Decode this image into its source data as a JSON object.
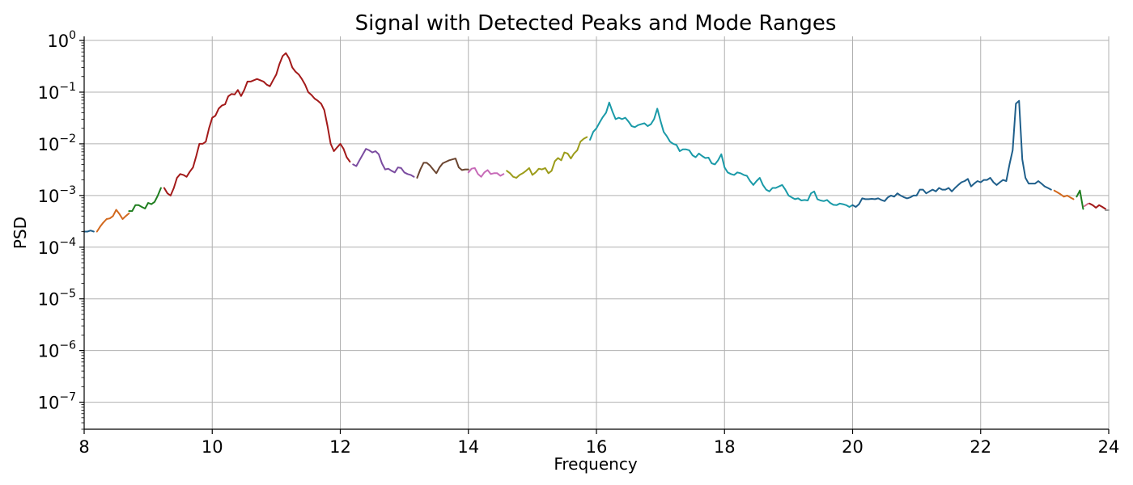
{
  "chart_data": {
    "type": "line",
    "title": "Signal with Detected Peaks and Mode Ranges",
    "xlabel": "Frequency",
    "ylabel": "PSD",
    "xlim": [
      8,
      24
    ],
    "ylim": [
      3e-08,
      1.2
    ],
    "yscale": "log",
    "grid": true,
    "x_ticks": [
      8,
      10,
      12,
      14,
      16,
      18,
      20,
      22,
      24
    ],
    "x_tick_labels": [
      "8",
      "10",
      "12",
      "14",
      "16",
      "18",
      "20",
      "22",
      "24"
    ],
    "y_ticks": [
      {
        "value": 1e-07,
        "base": "10",
        "exp": "−7"
      },
      {
        "value": 1e-06,
        "base": "10",
        "exp": "−6"
      },
      {
        "value": 1e-05,
        "base": "10",
        "exp": "−5"
      },
      {
        "value": 0.0001,
        "base": "10",
        "exp": "−4"
      },
      {
        "value": 0.001,
        "base": "10",
        "exp": "−3"
      },
      {
        "value": 0.01,
        "base": "10",
        "exp": "−2"
      },
      {
        "value": 0.1,
        "base": "10",
        "exp": "−1"
      },
      {
        "value": 1,
        "base": "10",
        "exp": "0"
      }
    ],
    "series": [
      {
        "color": "#1f5f8b",
        "x": [
          8.0,
          8.05,
          8.1,
          8.15
        ],
        "y": [
          0.0002,
          0.0002,
          0.00021,
          0.0002
        ]
      },
      {
        "color": "#d2691e",
        "x": [
          8.2,
          8.25,
          8.3,
          8.35,
          8.4,
          8.45,
          8.5,
          8.55,
          8.6,
          8.65,
          8.7
        ],
        "y": [
          0.0002,
          0.00025,
          0.0003,
          0.00035,
          0.00036,
          0.0004,
          0.00053,
          0.00044,
          0.00035,
          0.0004,
          0.00045
        ]
      },
      {
        "color": "#1e7d1e",
        "x": [
          8.7,
          8.75,
          8.8,
          8.85,
          8.9,
          8.95,
          9.0,
          9.05,
          9.1,
          9.15,
          9.2
        ],
        "y": [
          0.0005,
          0.0005,
          0.00065,
          0.00065,
          0.0006,
          0.00056,
          0.00072,
          0.00068,
          0.00075,
          0.001,
          0.0014
        ]
      },
      {
        "color": "#a31a1a",
        "x": [
          9.25,
          9.3,
          9.35,
          9.4,
          9.45,
          9.5,
          9.55,
          9.6,
          9.65,
          9.7,
          9.75,
          9.8,
          9.85,
          9.9,
          9.95,
          10.0,
          10.05,
          10.1,
          10.15,
          10.2,
          10.25,
          10.3,
          10.35,
          10.4,
          10.45,
          10.5,
          10.55,
          10.6,
          10.65,
          10.7,
          10.75,
          10.8,
          10.85,
          10.9,
          10.95,
          11.0,
          11.05,
          11.1,
          11.15,
          11.2,
          11.25,
          11.3,
          11.35,
          11.4,
          11.45,
          11.5,
          11.55,
          11.6,
          11.65,
          11.7,
          11.75,
          11.8,
          11.85,
          11.9,
          11.95,
          12.0,
          12.05,
          12.1,
          12.15
        ],
        "y": [
          0.0014,
          0.0011,
          0.001,
          0.0014,
          0.0022,
          0.0026,
          0.0025,
          0.0023,
          0.0029,
          0.0035,
          0.0058,
          0.01,
          0.01,
          0.011,
          0.02,
          0.032,
          0.035,
          0.048,
          0.055,
          0.058,
          0.083,
          0.092,
          0.09,
          0.11,
          0.084,
          0.11,
          0.16,
          0.16,
          0.17,
          0.18,
          0.17,
          0.16,
          0.14,
          0.13,
          0.17,
          0.22,
          0.35,
          0.5,
          0.57,
          0.45,
          0.3,
          0.25,
          0.22,
          0.18,
          0.14,
          0.1,
          0.088,
          0.075,
          0.068,
          0.06,
          0.045,
          0.022,
          0.01,
          0.0072,
          0.0085,
          0.01,
          0.008,
          0.0055,
          0.0045
        ]
      },
      {
        "color": "#7b4ca0",
        "x": [
          12.2,
          12.25,
          12.3,
          12.35,
          12.4,
          12.45,
          12.5,
          12.55,
          12.6,
          12.65,
          12.7,
          12.75,
          12.8,
          12.85,
          12.9,
          12.95,
          13.0,
          13.05,
          13.1,
          13.15
        ],
        "y": [
          0.004,
          0.0037,
          0.0048,
          0.0062,
          0.008,
          0.0075,
          0.0068,
          0.0072,
          0.0063,
          0.0042,
          0.0032,
          0.0033,
          0.003,
          0.0028,
          0.0035,
          0.0034,
          0.0028,
          0.0026,
          0.0025,
          0.0023
        ]
      },
      {
        "color": "#6b4530",
        "x": [
          13.2,
          13.25,
          13.3,
          13.35,
          13.4,
          13.45,
          13.5,
          13.55,
          13.6,
          13.65,
          13.7,
          13.75,
          13.8,
          13.85,
          13.9,
          13.95,
          14.0
        ],
        "y": [
          0.0022,
          0.0032,
          0.0043,
          0.0043,
          0.0038,
          0.0032,
          0.0027,
          0.0035,
          0.0042,
          0.0045,
          0.0048,
          0.005,
          0.0052,
          0.0035,
          0.0031,
          0.0032,
          0.0032
        ]
      },
      {
        "color": "#c76bb8",
        "x": [
          14.0,
          14.05,
          14.1,
          14.15,
          14.2,
          14.25,
          14.3,
          14.35,
          14.4,
          14.45,
          14.5,
          14.55
        ],
        "y": [
          0.0028,
          0.0033,
          0.0034,
          0.0026,
          0.0023,
          0.0028,
          0.0031,
          0.0026,
          0.0027,
          0.0027,
          0.0024,
          0.0026
        ]
      },
      {
        "color": "#9c9c1a",
        "x": [
          14.6,
          14.65,
          14.7,
          14.75,
          14.8,
          14.85,
          14.9,
          14.95,
          15.0,
          15.05,
          15.1,
          15.15,
          15.2,
          15.25,
          15.3,
          15.35,
          15.4,
          15.45,
          15.5,
          15.55,
          15.6,
          15.65,
          15.7,
          15.75,
          15.8,
          15.85
        ],
        "y": [
          0.003,
          0.0027,
          0.0023,
          0.0022,
          0.0025,
          0.0027,
          0.003,
          0.0034,
          0.0025,
          0.0028,
          0.0033,
          0.0032,
          0.0034,
          0.0027,
          0.003,
          0.0046,
          0.0053,
          0.0048,
          0.0068,
          0.0065,
          0.0052,
          0.0065,
          0.0075,
          0.011,
          0.0125,
          0.0135
        ]
      },
      {
        "color": "#1a9aa8",
        "x": [
          15.9,
          15.95,
          16.0,
          16.05,
          16.1,
          16.15,
          16.2,
          16.25,
          16.3,
          16.35,
          16.4,
          16.45,
          16.5,
          16.55,
          16.6,
          16.65,
          16.7,
          16.75,
          16.8,
          16.85,
          16.9,
          16.95,
          17.0,
          17.05,
          17.1,
          17.15,
          17.2,
          17.25,
          17.3,
          17.35,
          17.4,
          17.45,
          17.5,
          17.55,
          17.6,
          17.65,
          17.7,
          17.75,
          17.8,
          17.85,
          17.9,
          17.95,
          18.0,
          18.05,
          18.1,
          18.15,
          18.2,
          18.25,
          18.3,
          18.35,
          18.4,
          18.45,
          18.5,
          18.55,
          18.6,
          18.65,
          18.7,
          18.75,
          18.8,
          18.85,
          18.9,
          18.95,
          19.0,
          19.05,
          19.1,
          19.15,
          19.2,
          19.25,
          19.3,
          19.35,
          19.4,
          19.45,
          19.5,
          19.55,
          19.6,
          19.65,
          19.7,
          19.75,
          19.8,
          19.85,
          19.9,
          19.95,
          20.0
        ],
        "y": [
          0.012,
          0.017,
          0.02,
          0.026,
          0.033,
          0.04,
          0.063,
          0.042,
          0.03,
          0.032,
          0.03,
          0.032,
          0.027,
          0.022,
          0.021,
          0.023,
          0.024,
          0.025,
          0.022,
          0.024,
          0.03,
          0.048,
          0.028,
          0.017,
          0.014,
          0.011,
          0.01,
          0.0095,
          0.0072,
          0.0078,
          0.0078,
          0.0075,
          0.006,
          0.0055,
          0.0065,
          0.0058,
          0.0053,
          0.0054,
          0.0042,
          0.004,
          0.0048,
          0.0063,
          0.0035,
          0.0028,
          0.0026,
          0.0025,
          0.0028,
          0.0027,
          0.0025,
          0.0024,
          0.0019,
          0.0016,
          0.0019,
          0.0022,
          0.0016,
          0.0013,
          0.0012,
          0.0014,
          0.0014,
          0.0015,
          0.0016,
          0.0013,
          0.001,
          0.00092,
          0.00085,
          0.00088,
          0.0008,
          0.00082,
          0.0008,
          0.0011,
          0.0012,
          0.00085,
          0.0008,
          0.00078,
          0.00082,
          0.00072,
          0.00066,
          0.00065,
          0.0007,
          0.00068,
          0.00065,
          0.0006,
          0.00065
        ]
      },
      {
        "color": "#1f5f8b",
        "x": [
          20.0,
          20.05,
          20.1,
          20.15,
          20.2,
          20.25,
          20.3,
          20.35,
          20.4,
          20.45,
          20.5,
          20.55,
          20.6,
          20.65,
          20.7,
          20.75,
          20.8,
          20.85,
          20.9,
          20.95,
          21.0,
          21.05,
          21.1,
          21.15,
          21.2,
          21.25,
          21.3,
          21.35,
          21.4,
          21.45,
          21.5,
          21.55,
          21.6,
          21.65,
          21.7,
          21.75,
          21.8,
          21.85,
          21.9,
          21.95,
          22.0,
          22.05,
          22.1,
          22.15,
          22.2,
          22.25,
          22.3,
          22.35,
          22.4,
          22.45,
          22.5,
          22.55,
          22.6,
          22.65,
          22.7,
          22.75,
          22.8,
          22.85,
          22.9,
          22.95,
          23.0,
          23.05,
          23.1
        ],
        "y": [
          0.00065,
          0.0006,
          0.00068,
          0.00088,
          0.00085,
          0.00085,
          0.00086,
          0.00085,
          0.00088,
          0.00082,
          0.00078,
          0.00092,
          0.001,
          0.00095,
          0.0011,
          0.001,
          0.00093,
          0.00088,
          0.00092,
          0.001,
          0.001,
          0.0013,
          0.0013,
          0.0011,
          0.0012,
          0.0013,
          0.0012,
          0.0014,
          0.0013,
          0.0013,
          0.0014,
          0.0012,
          0.0014,
          0.0016,
          0.0018,
          0.0019,
          0.0021,
          0.0015,
          0.0017,
          0.0019,
          0.0018,
          0.002,
          0.002,
          0.0022,
          0.0018,
          0.0016,
          0.0018,
          0.002,
          0.0019,
          0.004,
          0.0075,
          0.06,
          0.068,
          0.005,
          0.0022,
          0.0017,
          0.0017,
          0.0017,
          0.0019,
          0.0017,
          0.0015,
          0.0014,
          0.0013
        ]
      },
      {
        "color": "#d2691e",
        "x": [
          23.15,
          23.2,
          23.25,
          23.3,
          23.35,
          23.4,
          23.45
        ],
        "y": [
          0.00125,
          0.00115,
          0.00105,
          0.00095,
          0.001,
          0.00092,
          0.00085
        ]
      },
      {
        "color": "#1e7d1e",
        "x": [
          23.5,
          23.55,
          23.6
        ],
        "y": [
          0.00095,
          0.00125,
          0.00055
        ]
      },
      {
        "color": "#d4708a",
        "x": [
          23.62,
          23.68
        ],
        "y": [
          0.00062,
          0.0007
        ]
      },
      {
        "color": "#a31a1a",
        "x": [
          23.7,
          23.75,
          23.8,
          23.85,
          23.9,
          23.95
        ],
        "y": [
          0.0007,
          0.00065,
          0.00058,
          0.00065,
          0.0006,
          0.00055
        ]
      },
      {
        "color": "#9c9c9c",
        "x": [
          23.95,
          24.0
        ],
        "y": [
          0.00052,
          0.00052
        ]
      }
    ]
  }
}
